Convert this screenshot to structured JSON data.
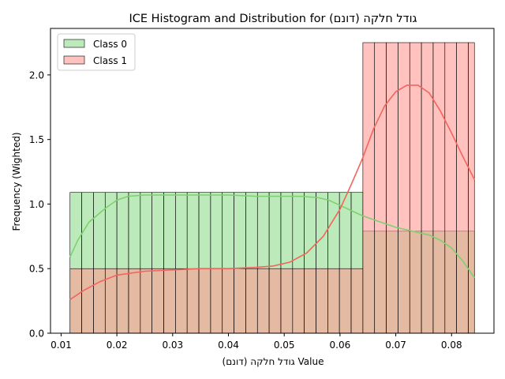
{
  "chart_data": {
    "type": "histogram",
    "title": "ICE Histogram and Distribution for גודל חלקה (דונם)",
    "xlabel": "גודל חלקה (דונם) Value",
    "ylabel": "Frequency (Wighted)",
    "xlim": [
      0.0081,
      0.0876
    ],
    "ylim": [
      0,
      2.36
    ],
    "xticks": [
      "0.01",
      "0.02",
      "0.03",
      "0.04",
      "0.05",
      "0.06",
      "0.07",
      "0.08"
    ],
    "yticks": [
      "0.0",
      "0.5",
      "1.0",
      "1.5",
      "2.0"
    ],
    "legend_position": "upper-left",
    "grid": false,
    "bin_edges": [
      0.0116,
      0.0137,
      0.0158,
      0.0179,
      0.02,
      0.0221,
      0.0242,
      0.0263,
      0.0284,
      0.0305,
      0.0326,
      0.0347,
      0.0368,
      0.0389,
      0.041,
      0.0431,
      0.0452,
      0.0473,
      0.0494,
      0.0515,
      0.0536,
      0.0557,
      0.0578,
      0.0599,
      0.062,
      0.0641,
      0.0662,
      0.0683,
      0.0704,
      0.0725,
      0.0746,
      0.0767,
      0.0788,
      0.0809,
      0.083,
      0.0841
    ],
    "series": [
      {
        "name": "Class 0",
        "fill": "#90dc8c",
        "kde_color": "#7ed070",
        "bin_values": [
          1.09,
          1.09,
          1.09,
          1.09,
          1.09,
          1.09,
          1.09,
          1.09,
          1.09,
          1.09,
          1.09,
          1.09,
          1.09,
          1.09,
          1.09,
          1.09,
          1.09,
          1.09,
          1.09,
          1.09,
          1.09,
          1.09,
          1.09,
          1.09,
          1.09,
          0.79,
          0.79,
          0.79,
          0.79,
          0.79,
          0.79,
          0.79,
          0.79,
          0.79,
          0.79
        ],
        "kde_x": [
          0.0116,
          0.013,
          0.015,
          0.018,
          0.02,
          0.022,
          0.025,
          0.03,
          0.035,
          0.04,
          0.045,
          0.05,
          0.053,
          0.056,
          0.058,
          0.06,
          0.062,
          0.064,
          0.066,
          0.068,
          0.07,
          0.072,
          0.074,
          0.076,
          0.078,
          0.08,
          0.082,
          0.0841
        ],
        "kde_y": [
          0.59,
          0.72,
          0.86,
          0.97,
          1.03,
          1.06,
          1.07,
          1.07,
          1.07,
          1.07,
          1.06,
          1.06,
          1.06,
          1.05,
          1.03,
          0.99,
          0.95,
          0.91,
          0.88,
          0.85,
          0.82,
          0.8,
          0.78,
          0.76,
          0.72,
          0.66,
          0.56,
          0.43
        ]
      },
      {
        "name": "Class 1",
        "fill": "#ff9a93",
        "kde_color": "#f2655c",
        "bin_values": [
          0.5,
          0.5,
          0.5,
          0.5,
          0.5,
          0.5,
          0.5,
          0.5,
          0.5,
          0.5,
          0.5,
          0.5,
          0.5,
          0.5,
          0.5,
          0.5,
          0.5,
          0.5,
          0.5,
          0.5,
          0.5,
          0.5,
          0.5,
          0.5,
          0.5,
          2.25,
          2.25,
          2.25,
          2.25,
          2.25,
          2.25,
          2.25,
          2.25,
          2.25,
          2.25
        ],
        "kde_x": [
          0.0116,
          0.014,
          0.017,
          0.02,
          0.025,
          0.03,
          0.035,
          0.04,
          0.045,
          0.048,
          0.051,
          0.054,
          0.057,
          0.06,
          0.062,
          0.064,
          0.066,
          0.068,
          0.07,
          0.072,
          0.074,
          0.076,
          0.078,
          0.08,
          0.082,
          0.0841
        ],
        "kde_y": [
          0.26,
          0.33,
          0.4,
          0.45,
          0.48,
          0.49,
          0.5,
          0.5,
          0.51,
          0.52,
          0.55,
          0.62,
          0.75,
          0.96,
          1.15,
          1.35,
          1.58,
          1.76,
          1.87,
          1.92,
          1.92,
          1.86,
          1.72,
          1.55,
          1.37,
          1.19
        ]
      }
    ]
  }
}
